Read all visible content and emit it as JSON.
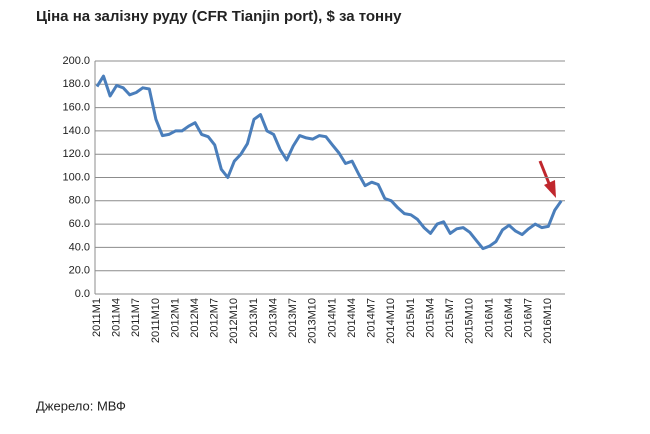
{
  "chart_data": {
    "type": "line",
    "title": "Ціна на залізну руду (CFR Tianjin port), $ за тонну",
    "source": "Джерело: МВФ",
    "categories": [
      "2011M1",
      null,
      null,
      "2011M4",
      null,
      null,
      "2011M7",
      null,
      null,
      "2011M10",
      null,
      null,
      "2012M1",
      null,
      null,
      "2012M4",
      null,
      null,
      "2012M7",
      null,
      null,
      "2012M10",
      null,
      null,
      "2013M1",
      null,
      null,
      "2013M4",
      null,
      null,
      "2013M7",
      null,
      null,
      "2013M10",
      null,
      null,
      "2014M1",
      null,
      null,
      "2014M4",
      null,
      null,
      "2014M7",
      null,
      null,
      "2014M10",
      null,
      null,
      "2015M1",
      null,
      null,
      "2015M4",
      null,
      null,
      "2015M7",
      null,
      null,
      "2015M10",
      null,
      null,
      "2016M1",
      null,
      null,
      "2016M4",
      null,
      null,
      "2016M7",
      null,
      null,
      "2016M10",
      null,
      null
    ],
    "values": [
      178,
      187,
      170,
      179,
      177,
      171,
      173,
      177,
      176,
      150,
      136,
      137,
      140,
      140,
      144,
      147,
      137,
      135,
      128,
      107,
      100,
      114,
      120,
      129,
      150,
      154,
      140,
      137,
      124,
      115,
      127,
      136,
      134,
      133,
      136,
      135,
      128,
      121,
      112,
      114,
      103,
      93,
      96,
      94,
      82,
      80,
      74,
      69,
      68,
      64,
      57,
      52,
      60,
      62,
      52,
      56,
      57,
      53,
      46,
      39,
      41,
      45,
      55,
      59,
      54,
      51,
      56,
      60,
      57,
      58,
      72,
      80
    ],
    "color": "#4a7ebb",
    "ylim": [
      0,
      200
    ],
    "yticks": [
      {
        "value": 0,
        "label": "0.0"
      },
      {
        "value": 20,
        "label": "20.0"
      },
      {
        "value": 40,
        "label": "40.0"
      },
      {
        "value": 60,
        "label": "60.0"
      },
      {
        "value": 80,
        "label": "80.0"
      },
      {
        "value": 100,
        "label": "100.0"
      },
      {
        "value": 120,
        "label": "120.0"
      },
      {
        "value": 140,
        "label": "140.0"
      },
      {
        "value": 160,
        "label": "160.0"
      },
      {
        "value": 180,
        "label": "180.0"
      },
      {
        "value": 200,
        "label": "200.0"
      }
    ],
    "grid": true
  }
}
